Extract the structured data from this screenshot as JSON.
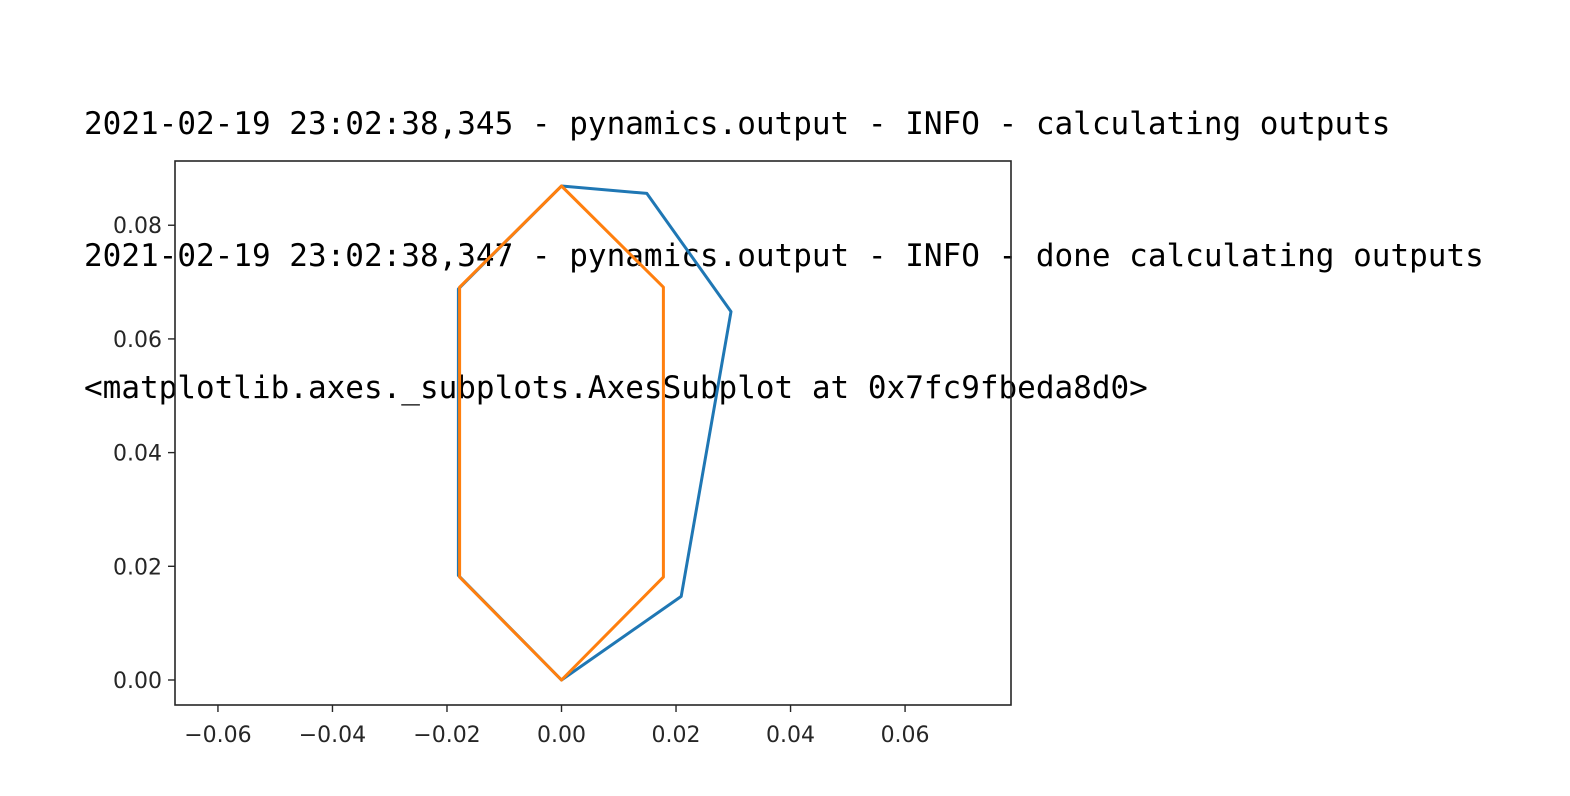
{
  "output_log": [
    "2021-02-19 23:02:38,345 - pynamics.output - INFO - calculating outputs",
    "2021-02-19 23:02:38,347 - pynamics.output - INFO - done calculating outputs",
    "<matplotlib.axes._subplots.AxesSubplot at 0x7fc9fbeda8d0>"
  ],
  "chart_data": {
    "type": "line",
    "title": "",
    "xlabel": "",
    "ylabel": "",
    "xlim": [
      -0.0675,
      0.0785
    ],
    "ylim": [
      -0.0044,
      0.0913
    ],
    "grid": false,
    "legend": "none",
    "xticks": [
      -0.06,
      -0.04,
      -0.02,
      0.0,
      0.02,
      0.04,
      0.06
    ],
    "xtick_labels": [
      "−0.06",
      "−0.04",
      "−0.02",
      "0.00",
      "0.02",
      "0.04",
      "0.06"
    ],
    "yticks": [
      0.0,
      0.02,
      0.04,
      0.06,
      0.08
    ],
    "ytick_labels": [
      "0.00",
      "0.02",
      "0.04",
      "0.06",
      "0.08"
    ],
    "series": [
      {
        "color": "#1f77b4",
        "x": [
          0.0,
          0.0209,
          0.0296,
          0.0149,
          0.0,
          -0.018,
          -0.018,
          0.0
        ],
        "y": [
          0.0,
          0.0147,
          0.0648,
          0.0856,
          0.0869,
          0.0688,
          0.0184,
          0.0
        ]
      },
      {
        "color": "#ff7f0e",
        "x": [
          0.0,
          0.0178,
          0.0178,
          0.0,
          -0.0178,
          -0.0178,
          0.0
        ],
        "y": [
          0.0,
          0.0181,
          0.0691,
          0.0869,
          0.0691,
          0.0181,
          0.0
        ]
      }
    ]
  }
}
